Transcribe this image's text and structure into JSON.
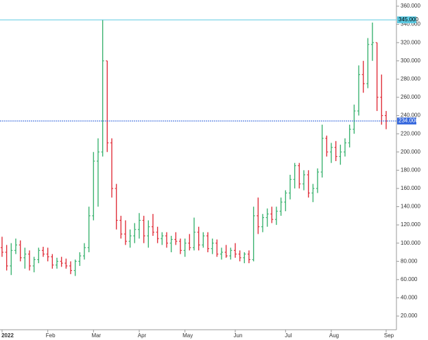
{
  "chart_data": {
    "type": "ohlc",
    "categories": [
      "2022",
      null,
      null,
      null,
      null,
      null,
      null,
      null,
      null,
      null,
      "Feb",
      null,
      null,
      null,
      null,
      null,
      null,
      null,
      null,
      null,
      "Mar",
      null,
      null,
      null,
      null,
      null,
      null,
      null,
      null,
      null,
      "Apr",
      null,
      null,
      null,
      null,
      null,
      null,
      null,
      null,
      null,
      "May",
      null,
      null,
      null,
      null,
      null,
      null,
      null,
      null,
      null,
      null,
      "Jun",
      null,
      null,
      null,
      null,
      null,
      null,
      null,
      null,
      null,
      null,
      "Jul",
      null,
      null,
      null,
      null,
      null,
      null,
      null,
      null,
      null,
      "Aug",
      null,
      null,
      null,
      null,
      null,
      null,
      null,
      null,
      null,
      null,
      null,
      "Sep"
    ],
    "open": [
      95,
      90,
      75,
      92,
      98,
      84,
      88,
      75,
      82,
      92,
      88,
      85,
      76,
      80,
      78,
      75,
      70,
      80,
      86,
      95,
      130,
      190,
      200,
      300,
      210,
      160,
      125,
      110,
      102,
      108,
      115,
      125,
      108,
      118,
      112,
      105,
      108,
      100,
      104,
      102,
      92,
      100,
      95,
      112,
      98,
      108,
      94,
      100,
      88,
      90,
      86,
      92,
      88,
      84,
      88,
      82,
      130,
      118,
      128,
      132,
      126,
      135,
      145,
      155,
      170,
      185,
      165,
      175,
      155,
      160,
      178,
      215,
      200,
      205,
      195,
      200,
      210,
      225,
      245,
      285,
      275,
      318,
      320,
      260,
      240
    ],
    "high": [
      107,
      98,
      100,
      105,
      103,
      95,
      92,
      85,
      95,
      96,
      95,
      88,
      84,
      85,
      83,
      80,
      82,
      90,
      100,
      140,
      200,
      215,
      345,
      300,
      215,
      165,
      130,
      125,
      115,
      122,
      133,
      130,
      125,
      132,
      118,
      112,
      112,
      108,
      112,
      105,
      105,
      110,
      128,
      118,
      112,
      112,
      105,
      104,
      95,
      98,
      95,
      100,
      92,
      90,
      92,
      140,
      150,
      132,
      138,
      140,
      140,
      150,
      158,
      175,
      188,
      188,
      180,
      180,
      165,
      182,
      230,
      218,
      210,
      212,
      208,
      215,
      230,
      252,
      295,
      300,
      325,
      342,
      320,
      285,
      245
    ],
    "low": [
      85,
      70,
      65,
      88,
      80,
      72,
      70,
      68,
      78,
      85,
      80,
      72,
      72,
      74,
      72,
      66,
      64,
      75,
      82,
      90,
      125,
      140,
      195,
      200,
      150,
      115,
      105,
      98,
      95,
      100,
      105,
      100,
      95,
      108,
      100,
      98,
      95,
      90,
      98,
      88,
      85,
      92,
      92,
      92,
      95,
      90,
      88,
      85,
      82,
      84,
      82,
      84,
      80,
      78,
      78,
      80,
      110,
      112,
      118,
      122,
      120,
      130,
      135,
      148,
      160,
      160,
      158,
      150,
      145,
      155,
      172,
      195,
      188,
      190,
      186,
      195,
      205,
      220,
      240,
      265,
      270,
      300,
      245,
      230,
      225
    ],
    "close": [
      90,
      75,
      92,
      98,
      84,
      88,
      75,
      82,
      92,
      88,
      85,
      76,
      80,
      78,
      75,
      70,
      80,
      86,
      95,
      130,
      190,
      200,
      300,
      210,
      160,
      125,
      110,
      102,
      108,
      115,
      125,
      108,
      118,
      112,
      105,
      108,
      100,
      104,
      102,
      92,
      100,
      95,
      112,
      98,
      108,
      94,
      100,
      88,
      90,
      86,
      92,
      88,
      84,
      88,
      82,
      130,
      118,
      128,
      132,
      126,
      135,
      145,
      155,
      170,
      185,
      165,
      175,
      155,
      160,
      178,
      215,
      200,
      205,
      195,
      200,
      210,
      225,
      245,
      285,
      275,
      318,
      320,
      260,
      240,
      234
    ],
    "up_color": "#3cb371",
    "down_color": "#e0303b",
    "ylim": [
      5,
      360
    ],
    "yticks": [
      {
        "value": 20,
        "label": "20.000"
      },
      {
        "value": 40,
        "label": "40.000"
      },
      {
        "value": 60,
        "label": "60.000"
      },
      {
        "value": 80,
        "label": "80.000"
      },
      {
        "value": 100,
        "label": "100.000"
      },
      {
        "value": 120,
        "label": "120.000"
      },
      {
        "value": 140,
        "label": "140.000"
      },
      {
        "value": 160,
        "label": "160.000"
      },
      {
        "value": 180,
        "label": "180.000"
      },
      {
        "value": 200,
        "label": "200.000"
      },
      {
        "value": 220,
        "label": "220.000"
      },
      {
        "value": 240,
        "label": "240.000"
      },
      {
        "value": 260,
        "label": "260.000"
      },
      {
        "value": 280,
        "label": "280.000"
      },
      {
        "value": 300,
        "label": "300.000"
      },
      {
        "value": 320,
        "label": "320.000"
      },
      {
        "value": 340,
        "label": "340.000"
      },
      {
        "value": 360,
        "label": "360.000"
      }
    ],
    "hlines": [
      {
        "value": 345,
        "label": "345.000",
        "color": "#5bc8e0",
        "style": "solid"
      },
      {
        "value": 234,
        "label": "234.000",
        "color": "#3366dd",
        "style": "dotted"
      }
    ]
  }
}
